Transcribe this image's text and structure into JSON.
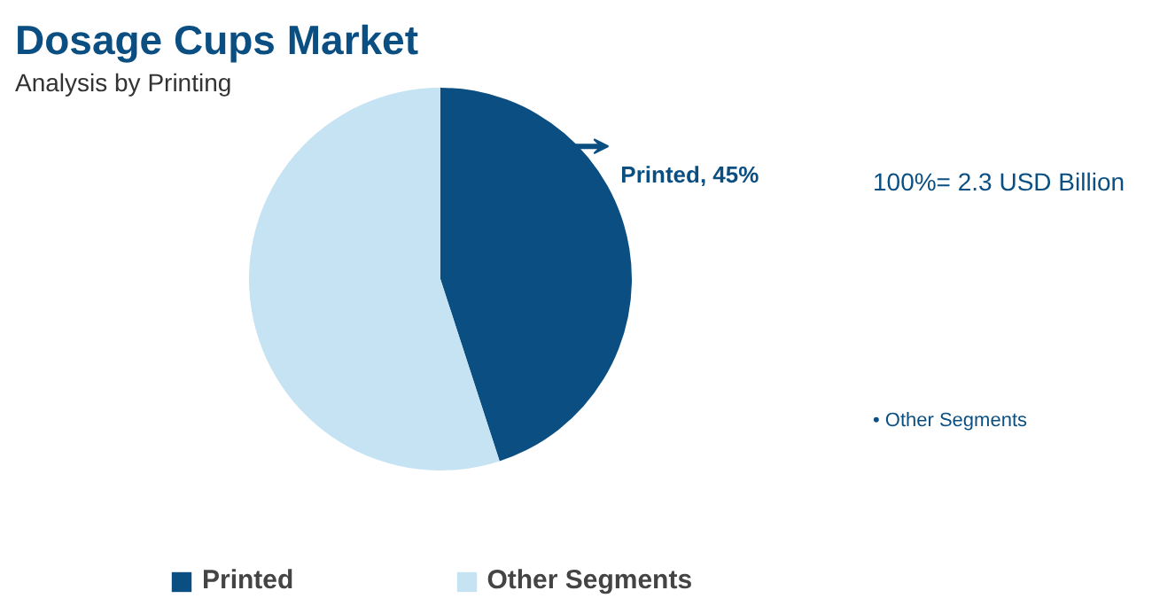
{
  "chart_data": {
    "type": "pie",
    "title": "Dosage Cups Market",
    "subtitle": "Analysis by Printing",
    "categories": [
      "Printed",
      "Other Segments"
    ],
    "values": [
      45,
      55
    ],
    "colors": [
      "#0b4f82",
      "#c5e3f3"
    ],
    "value_labels": [
      "Printed, 45%",
      null
    ],
    "annotations": [
      "100%= 2.3 USD Billion",
      "• Other Segments"
    ],
    "legend": "bottom"
  }
}
